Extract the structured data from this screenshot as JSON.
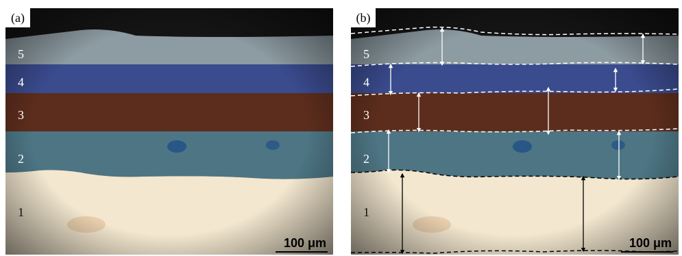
{
  "panels": [
    {
      "label": "(a)"
    },
    {
      "label": "(b)"
    }
  ],
  "layers": [
    {
      "label": "5",
      "color": "#8d9ba2"
    },
    {
      "label": "4",
      "color": "#3a4b8e"
    },
    {
      "label": "3",
      "color": "#5c2d1d"
    },
    {
      "label": "2",
      "color": "#4d7584"
    },
    {
      "label": "1",
      "color": "#f3e7cf"
    }
  ],
  "scale_bar": {
    "text": "100 μm"
  },
  "boundary_colors": {
    "upper": "#ffffff",
    "lower": "#000000"
  }
}
